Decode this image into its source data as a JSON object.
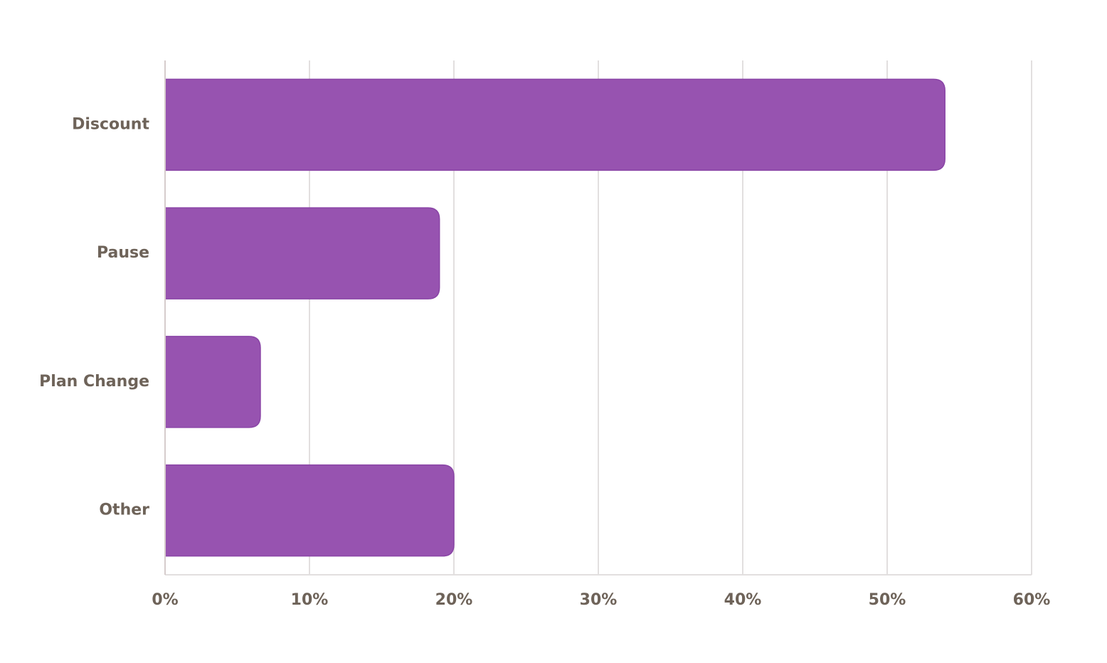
{
  "chart_data": {
    "type": "bar",
    "orientation": "horizontal",
    "categories": [
      "Discount",
      "Pause",
      "Plan Change",
      "Other"
    ],
    "values": [
      54,
      19,
      6.6,
      20
    ],
    "color": "#9753b0",
    "xlim": [
      0,
      60
    ],
    "xticks": [
      {
        "value": 0,
        "label": "0%"
      },
      {
        "value": 10,
        "label": "10%"
      },
      {
        "value": 20,
        "label": "20%"
      },
      {
        "value": 30,
        "label": "30%"
      },
      {
        "value": 40,
        "label": "40%"
      },
      {
        "value": 50,
        "label": "50%"
      },
      {
        "value": 60,
        "label": "60%"
      }
    ],
    "grid": true
  }
}
